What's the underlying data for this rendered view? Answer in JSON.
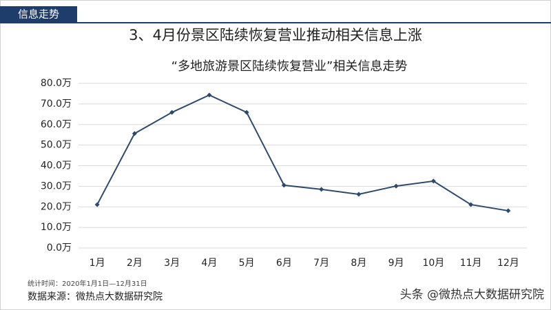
{
  "header": {
    "tab": "信息走势",
    "title": "3、4月份景区陆续恢复营业推动相关信息上涨"
  },
  "chart_data": {
    "type": "line",
    "title": "“多地旅游景区陆续恢复营业”相关信息走势",
    "categories": [
      "1月",
      "2月",
      "3月",
      "4月",
      "5月",
      "6月",
      "7月",
      "8月",
      "9月",
      "10月",
      "11月",
      "12月"
    ],
    "values": [
      21.1,
      55.6,
      65.9,
      74.3,
      65.9,
      30.5,
      28.5,
      26.1,
      30.1,
      32.5,
      21.1,
      18.1
    ],
    "color": "#2e4a6b",
    "ylim": [
      0,
      80
    ],
    "yticks": [
      {
        "value": 0,
        "label": "0.0万"
      },
      {
        "value": 10,
        "label": "10.0万"
      },
      {
        "value": 20,
        "label": "20.0万"
      },
      {
        "value": 30,
        "label": "30.0万"
      },
      {
        "value": 40,
        "label": "40.0万"
      },
      {
        "value": 50,
        "label": "50.0万"
      },
      {
        "value": 60,
        "label": "60.0万"
      },
      {
        "value": 70,
        "label": "70.0万"
      },
      {
        "value": 80,
        "label": "80.0万"
      }
    ],
    "grid": true
  },
  "footer": {
    "stat_time": "统计时间：2020年1月1日—12月31日",
    "source": "数据来源：微热点大数据研究院"
  },
  "watermark": "头条 @微热点大数据研究院"
}
